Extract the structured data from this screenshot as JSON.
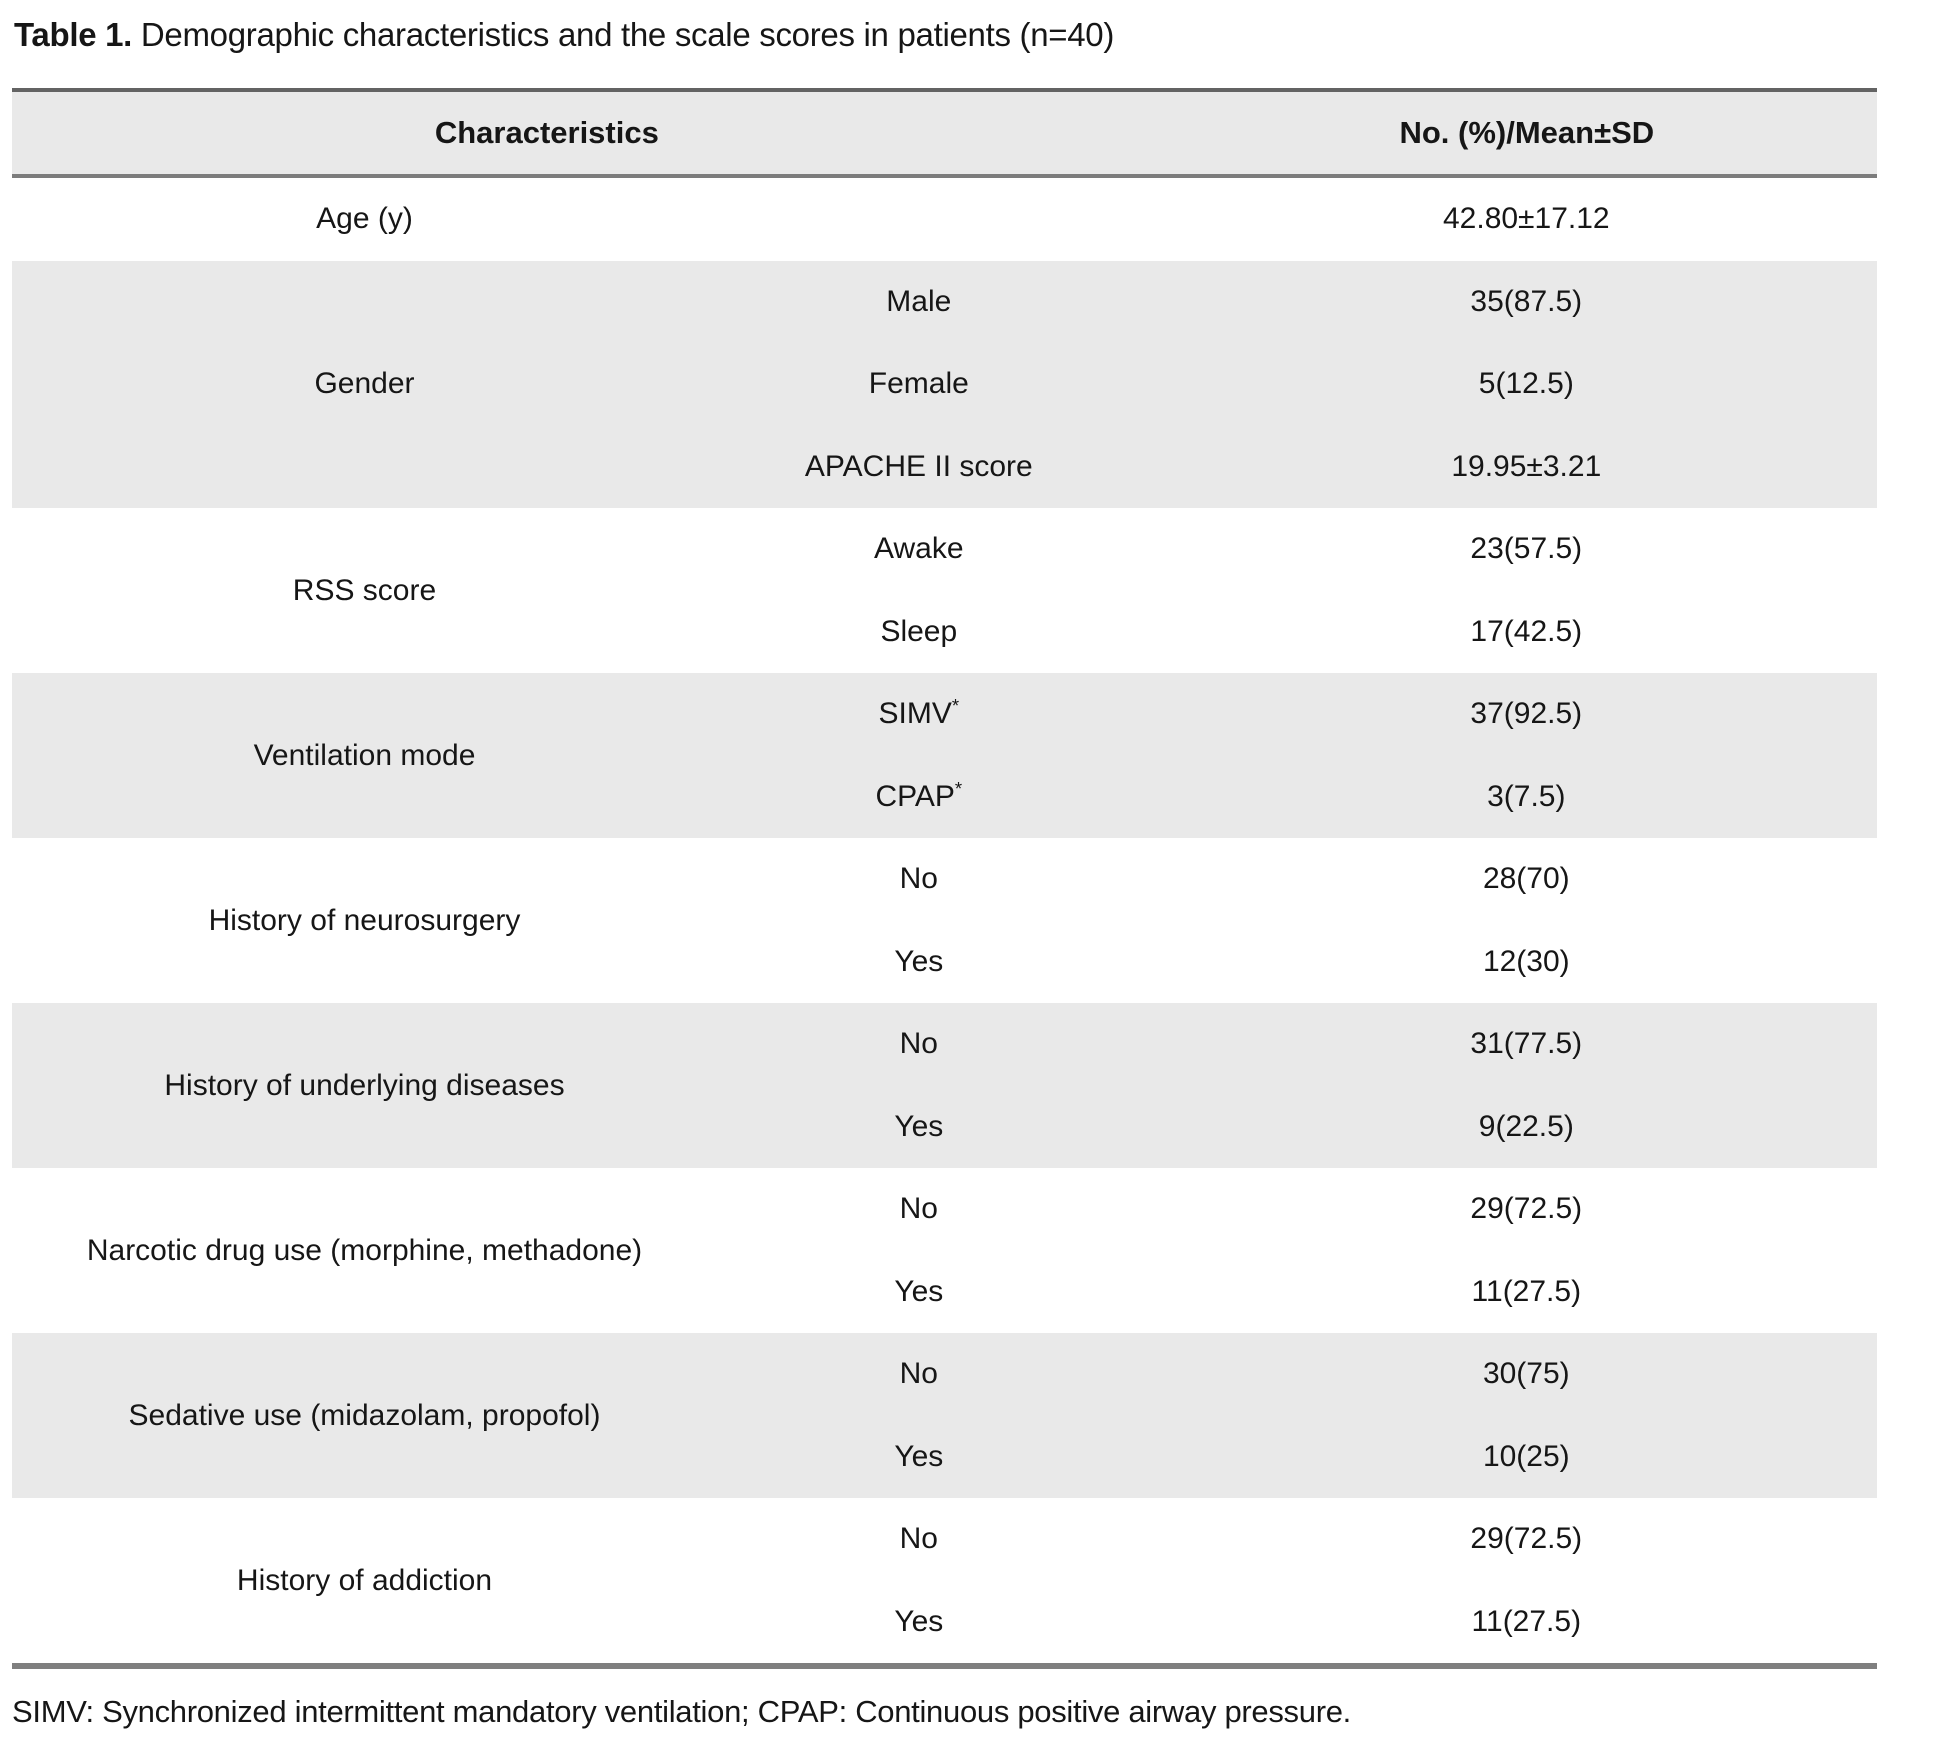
{
  "title": {
    "prefix": "Table 1.",
    "rest": " Demographic characteristics and the scale scores in patients (n=40)"
  },
  "table": {
    "headers": {
      "characteristics": "Characteristics",
      "value": "No. (%)/Mean±SD"
    },
    "groups": [
      {
        "label": "Age (y)",
        "rows": [
          {
            "sub": "",
            "value": "42.80±17.12"
          }
        ]
      },
      {
        "label": "Gender",
        "rows": [
          {
            "sub": "Male",
            "value": "35(87.5)"
          },
          {
            "sub": "Female",
            "value": "5(12.5)"
          },
          {
            "sub": "APACHE II score",
            "value": "19.95±3.21"
          }
        ]
      },
      {
        "label": "RSS score",
        "rows": [
          {
            "sub": "Awake",
            "value": "23(57.5)"
          },
          {
            "sub": "Sleep",
            "value": "17(42.5)"
          }
        ]
      },
      {
        "label": "Ventilation mode",
        "rows": [
          {
            "sub": "SIMV",
            "sup": "*",
            "value": "37(92.5)"
          },
          {
            "sub": "CPAP",
            "sup": "*",
            "value": "3(7.5)"
          }
        ]
      },
      {
        "label": "History of neurosurgery",
        "rows": [
          {
            "sub": "No",
            "value": "28(70)"
          },
          {
            "sub": "Yes",
            "value": "12(30)"
          }
        ]
      },
      {
        "label": "History of underlying diseases",
        "rows": [
          {
            "sub": "No",
            "value": "31(77.5)"
          },
          {
            "sub": "Yes",
            "value": "9(22.5)"
          }
        ]
      },
      {
        "label": "Narcotic drug use (morphine, methadone)",
        "rows": [
          {
            "sub": "No",
            "value": "29(72.5)"
          },
          {
            "sub": "Yes",
            "value": "11(27.5)"
          }
        ]
      },
      {
        "label": "Sedative use (midazolam, propofol)",
        "rows": [
          {
            "sub": "No",
            "value": "30(75)"
          },
          {
            "sub": "Yes",
            "value": "10(25)"
          }
        ]
      },
      {
        "label": "History of addiction",
        "rows": [
          {
            "sub": "No",
            "value": "29(72.5)"
          },
          {
            "sub": "Yes",
            "value": "11(27.5)"
          }
        ]
      }
    ],
    "shaded_row_color": "#e9e9e9",
    "border_color": "#7c7c7c"
  },
  "footnote": "SIMV: Synchronized intermittent mandatory ventilation; CPAP: Continuous positive airway pressure."
}
